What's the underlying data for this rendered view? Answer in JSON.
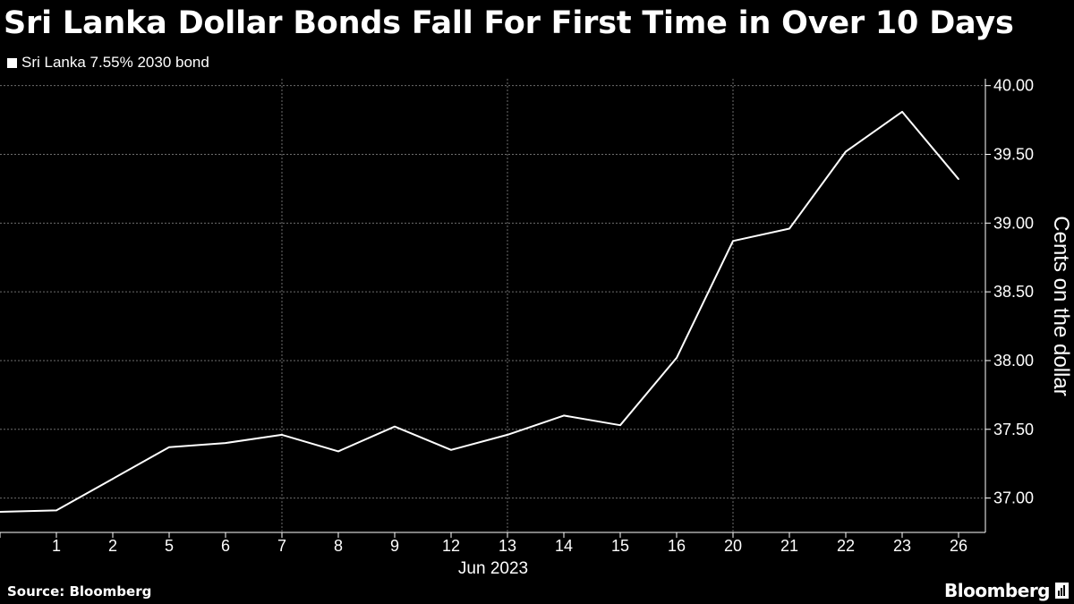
{
  "title": "Sri Lanka Dollar Bonds Fall For First Time in Over 10 Days",
  "legend_label": "Sri Lanka 7.55% 2030 bond",
  "source": "Source: Bloomberg",
  "brand": "Bloomberg",
  "brand_icon": "bloomberg-terminal-icon",
  "colors": {
    "background": "#000000",
    "line": "#ffffff",
    "grid": "#6e6e6e",
    "text": "#ffffff"
  },
  "chart_data": {
    "type": "line",
    "title": "Sri Lanka Dollar Bonds Fall For First Time in Over 10 Days",
    "ylabel": "Cents on the dollar",
    "xlabel": "Jun 2023",
    "y_axis_side": "right",
    "ylim": [
      36.75,
      40.05
    ],
    "y_ticks": [
      "37.00",
      "37.50",
      "38.00",
      "38.50",
      "39.00",
      "39.50",
      "40.00"
    ],
    "grid": true,
    "legend_position": "top-left",
    "categories": [
      "",
      "1",
      "2",
      "5",
      "6",
      "7",
      "8",
      "9",
      "12",
      "13",
      "14",
      "15",
      "16",
      "20",
      "21",
      "22",
      "23",
      "26"
    ],
    "series": [
      {
        "name": "Sri Lanka 7.55% 2030 bond",
        "values": [
          36.9,
          36.91,
          37.14,
          37.37,
          37.4,
          37.46,
          37.34,
          37.52,
          37.35,
          37.46,
          37.6,
          37.53,
          38.02,
          38.87,
          38.96,
          39.52,
          39.81,
          39.32
        ]
      }
    ]
  }
}
